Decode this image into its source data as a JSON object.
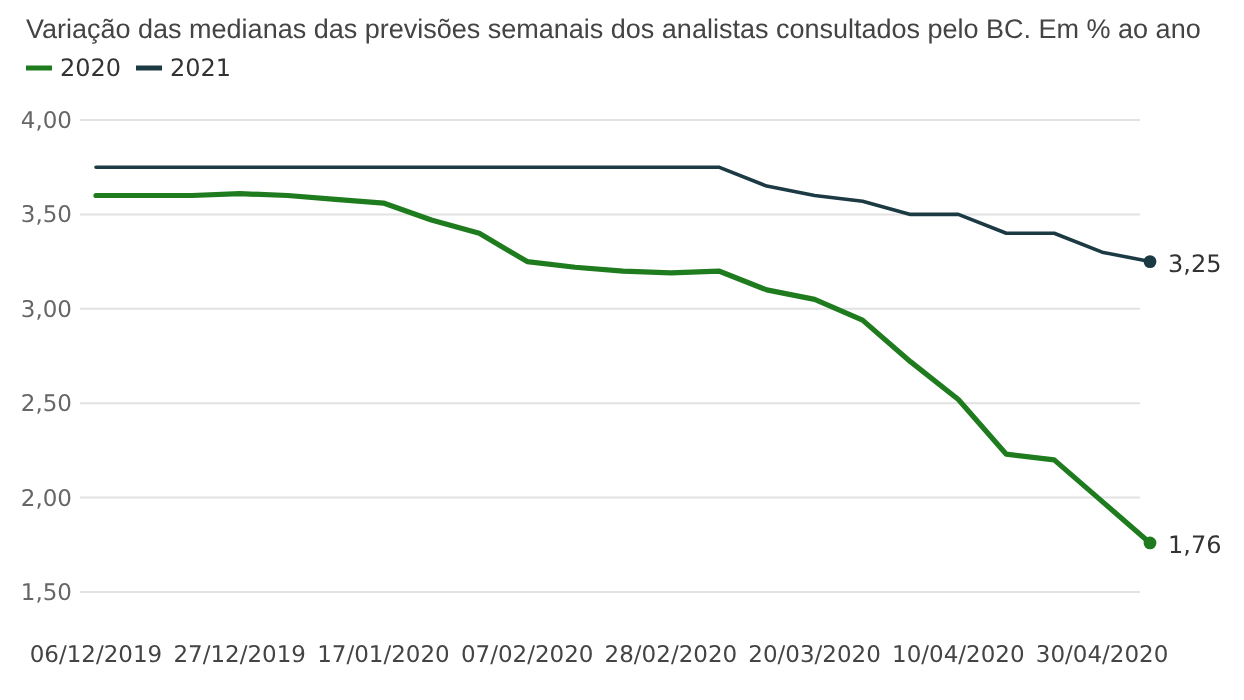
{
  "chart_data": {
    "type": "line",
    "title": "Variação das medianas das previsões semanais dos analistas consultados pelo BC. Em % ao ano",
    "categories": [
      "06/12/2019",
      null,
      null,
      "27/12/2019",
      null,
      null,
      "17/01/2020",
      null,
      null,
      "07/02/2020",
      null,
      null,
      "28/02/2020",
      null,
      null,
      "20/03/2020",
      null,
      null,
      "10/04/2020",
      null,
      null,
      "30/04/2020",
      null
    ],
    "series": [
      {
        "name": "2020",
        "color": "#1e7b1e",
        "values": [
          3.6,
          3.6,
          3.6,
          3.61,
          3.6,
          3.58,
          3.56,
          3.47,
          3.4,
          3.25,
          3.22,
          3.2,
          3.19,
          3.2,
          3.1,
          3.05,
          2.94,
          2.72,
          2.52,
          2.23,
          2.2,
          1.98,
          1.76
        ],
        "value_labels": [
          null,
          null,
          null,
          null,
          null,
          null,
          null,
          null,
          null,
          null,
          null,
          null,
          null,
          null,
          null,
          null,
          null,
          null,
          null,
          null,
          null,
          null,
          "1,76"
        ]
      },
      {
        "name": "2021",
        "color": "#1c3a44",
        "values": [
          3.75,
          3.75,
          3.75,
          3.75,
          3.75,
          3.75,
          3.75,
          3.75,
          3.75,
          3.75,
          3.75,
          3.75,
          3.75,
          3.75,
          3.65,
          3.6,
          3.57,
          3.5,
          3.5,
          3.4,
          3.4,
          3.3,
          3.25
        ],
        "value_labels": [
          null,
          null,
          null,
          null,
          null,
          null,
          null,
          null,
          null,
          null,
          null,
          null,
          null,
          null,
          null,
          null,
          null,
          null,
          null,
          null,
          null,
          null,
          "3,25"
        ]
      }
    ],
    "ylim": [
      1.5,
      4
    ],
    "yticks": [
      {
        "value": 1.5,
        "label": "1,50"
      },
      {
        "value": 2,
        "label": "2,00"
      },
      {
        "value": 2.5,
        "label": "2,50"
      },
      {
        "value": 3,
        "label": "3,00"
      },
      {
        "value": 3.5,
        "label": "3,50"
      },
      {
        "value": 4,
        "label": "4,00"
      }
    ],
    "grid": "y",
    "legend": "top left",
    "marker": "none",
    "line_style": "solid"
  }
}
